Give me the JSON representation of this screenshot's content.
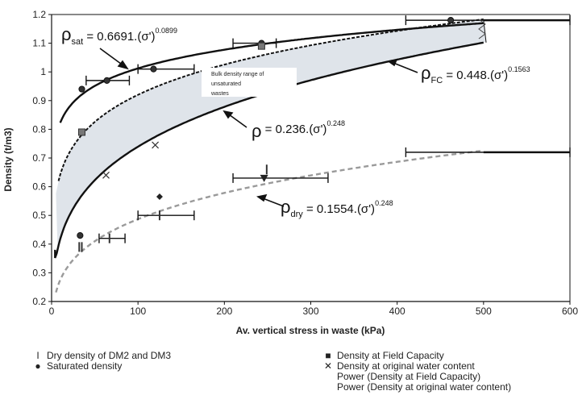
{
  "chart_data": {
    "type": "scatter",
    "xlabel": "Av. vertical stress in waste (kPa)",
    "ylabel": "Density (t/m3)",
    "xlim": [
      0,
      600
    ],
    "ylim": [
      0.2,
      1.2
    ],
    "x_ticks": [
      "0",
      "100",
      "200",
      "300",
      "400",
      "500",
      "600"
    ],
    "y_ticks": [
      "0.2",
      "0.3",
      "0.4",
      "0.5",
      "0.6",
      "0.7",
      "0.8",
      "0.9",
      "1",
      "1.1",
      "1.2"
    ],
    "grid": false,
    "legend_position": "below",
    "series": [
      {
        "name": "Dry density of DM2 and DM3",
        "marker": "bar",
        "x": [
          32,
          35,
          67,
          125,
          249
        ],
        "y": [
          0.39,
          0.39,
          0.42,
          0.5,
          0.66
        ]
      },
      {
        "name": "Saturated density",
        "marker": "circle",
        "x": [
          33,
          35,
          64,
          118,
          243,
          462
        ],
        "y": [
          0.43,
          0.94,
          0.97,
          1.01,
          1.1,
          1.18
        ]
      },
      {
        "name": "Density at Field Capacity",
        "marker": "square",
        "x": [
          35,
          243
        ],
        "y": [
          0.79,
          1.09
        ]
      },
      {
        "name": "Density at original water content",
        "marker": "x",
        "x": [
          63,
          120
        ],
        "y": [
          0.64,
          0.745
        ]
      }
    ],
    "extra_points": [
      {
        "x": 125,
        "y": 0.565,
        "marker": "diamond"
      },
      {
        "x": 246,
        "y": 0.63,
        "marker": "triangle"
      }
    ],
    "error_bars": [
      {
        "y": 1.18,
        "x_from": 410,
        "x_to": 600
      },
      {
        "y": 1.1,
        "x_from": 210,
        "x_to": 260
      },
      {
        "y": 1.01,
        "x_from": 100,
        "x_to": 165
      },
      {
        "y": 0.97,
        "x_from": 40,
        "x_to": 90
      },
      {
        "y": 0.72,
        "x_from": 410,
        "x_to": 600
      },
      {
        "y": 0.63,
        "x_from": 210,
        "x_to": 320
      },
      {
        "y": 0.5,
        "x_from": 100,
        "x_to": 165
      },
      {
        "y": 0.42,
        "x_from": 55,
        "x_to": 85
      }
    ],
    "curves": [
      {
        "label": "ρsat = 0.6691.(σ')^0.0899",
        "a": 0.6691,
        "b": 0.0899,
        "style": "solid"
      },
      {
        "label": "ρFC = 0.448.(σ')^0.1563",
        "a": 0.448,
        "b": 0.1563,
        "style": "dashed"
      },
      {
        "label": "ρ = 0.236.(σ')^0.248",
        "a": 0.236,
        "b": 0.248,
        "style": "solid"
      },
      {
        "label": "ρdry = 0.1554.(σ')^0.248",
        "a": 0.1554,
        "b": 0.248,
        "style": "dashed-gray"
      }
    ],
    "shaded_region": "Bulk density range of unsaturated wastes"
  },
  "equations": {
    "sat": {
      "sym": "ρ",
      "sub": "sat",
      "rhs": " = 0.6691.(σ')",
      "exp": "0.0899"
    },
    "fc": {
      "sym": "ρ",
      "sub": "FC",
      "rhs": " = 0.448.(σ')",
      "exp": "0.1563"
    },
    "mid": {
      "sym": "ρ",
      "sub": "",
      "rhs": " = 0.236.(σ')",
      "exp": "0.248"
    },
    "dry": {
      "sym": "ρ",
      "sub": "dry",
      "rhs": " = 0.1554.(σ')",
      "exp": "0.248"
    }
  },
  "annotation": {
    "line1": "Bulk density range of",
    "line2": "unsaturated",
    "line3": "wastes"
  },
  "legend": {
    "dry": "Dry density of DM2 and DM3",
    "saturated": "Saturated density",
    "fc": "Density at Field Capacity",
    "orig": "Density at original water content",
    "power_fc": "Power (Density at Field Capacity)",
    "power_orig": "Power (Density at original water content)"
  }
}
